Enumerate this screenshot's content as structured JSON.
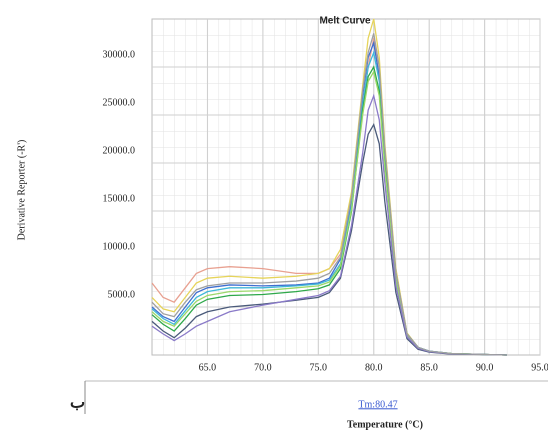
{
  "chart_data": {
    "type": "line",
    "title": "Melt Curve",
    "y_label": "Derivative Reporter (-R')",
    "x_label": "Temperature (°C)",
    "annotation": "Tm:80.47",
    "figure_label": "ب",
    "x": [
      60,
      61,
      62,
      63,
      64,
      65,
      67,
      70,
      73,
      75,
      76,
      77,
      78,
      79,
      79.5,
      80,
      80.5,
      81,
      82,
      83,
      84,
      85,
      87,
      90,
      92
    ],
    "series": [
      {
        "color": "#e8a090",
        "values": [
          7500,
          6000,
          5500,
          7000,
          8500,
          9000,
          9200,
          9000,
          8500,
          8500,
          9000,
          10500,
          16000,
          26000,
          30000,
          33000,
          29000,
          21000,
          8500,
          2200,
          800,
          400,
          150,
          50,
          0
        ]
      },
      {
        "color": "#e6d45a",
        "values": [
          6000,
          4800,
          4500,
          6000,
          7500,
          8000,
          8200,
          8000,
          8200,
          8500,
          9000,
          11000,
          17000,
          28000,
          33000,
          35000,
          31000,
          22000,
          9000,
          2300,
          800,
          400,
          150,
          50,
          0
        ]
      },
      {
        "color": "#3f6fd0",
        "values": [
          5000,
          4000,
          3500,
          5000,
          6500,
          7000,
          7300,
          7200,
          7300,
          7500,
          8000,
          10000,
          16000,
          27000,
          31000,
          32500,
          29000,
          21000,
          8500,
          2200,
          800,
          400,
          150,
          50,
          0
        ]
      },
      {
        "color": "#40b8d8",
        "values": [
          4800,
          3800,
          3200,
          4600,
          6000,
          6600,
          7000,
          7000,
          7200,
          7400,
          7800,
          9500,
          15500,
          26000,
          30000,
          31500,
          28500,
          20500,
          8300,
          2100,
          800,
          400,
          150,
          50,
          0
        ]
      },
      {
        "color": "#2ea84a",
        "values": [
          4200,
          3200,
          2500,
          3800,
          5200,
          5800,
          6200,
          6300,
          6600,
          6900,
          7300,
          9000,
          15000,
          25500,
          29000,
          30000,
          27500,
          20000,
          8000,
          2000,
          700,
          350,
          150,
          50,
          0
        ]
      },
      {
        "color": "#9ad86a",
        "values": [
          4500,
          3500,
          3000,
          4300,
          5600,
          6200,
          6600,
          6700,
          7000,
          7200,
          7600,
          9300,
          15200,
          25000,
          28500,
          29500,
          27000,
          19500,
          7900,
          2000,
          700,
          350,
          150,
          50,
          0
        ]
      },
      {
        "color": "#4a5a7a",
        "values": [
          3500,
          2500,
          1800,
          2800,
          4000,
          4500,
          5000,
          5300,
          5700,
          6000,
          6500,
          8000,
          13000,
          20000,
          23000,
          24000,
          22000,
          16000,
          6500,
          1700,
          600,
          300,
          100,
          50,
          0
        ]
      },
      {
        "color": "#8a7ac8",
        "values": [
          3000,
          2200,
          1500,
          2200,
          3000,
          3500,
          4500,
          5200,
          5800,
          6200,
          6700,
          8200,
          13500,
          21000,
          25500,
          27000,
          24500,
          18000,
          7200,
          1900,
          700,
          350,
          120,
          50,
          0
        ]
      },
      {
        "color": "#a0a0a0",
        "values": [
          5500,
          4300,
          4000,
          5500,
          6800,
          7200,
          7500,
          7500,
          7700,
          8000,
          8500,
          10200,
          16500,
          27500,
          31500,
          33500,
          30000,
          21500,
          8600,
          2200,
          800,
          400,
          150,
          50,
          0
        ]
      }
    ],
    "xlim": [
      60,
      95
    ],
    "xticks": [
      {
        "value": 65,
        "label": "65.0"
      },
      {
        "value": 70,
        "label": "70.0"
      },
      {
        "value": 75,
        "label": "75.0"
      },
      {
        "value": 80,
        "label": "80.0"
      },
      {
        "value": 85,
        "label": "85.0"
      },
      {
        "value": 90,
        "label": "90.0"
      },
      {
        "value": 95,
        "label": "95.0"
      }
    ],
    "ylim": [
      0,
      35000
    ],
    "yticks": [
      {
        "value": 5000,
        "label": "5000.0"
      },
      {
        "value": 10000,
        "label": "10000.0"
      },
      {
        "value": 15000,
        "label": "15000.0"
      },
      {
        "value": 20000,
        "label": "20000.0"
      },
      {
        "value": 25000,
        "label": "25000.0"
      },
      {
        "value": 30000,
        "label": "30000.0"
      }
    ],
    "grid": true
  }
}
